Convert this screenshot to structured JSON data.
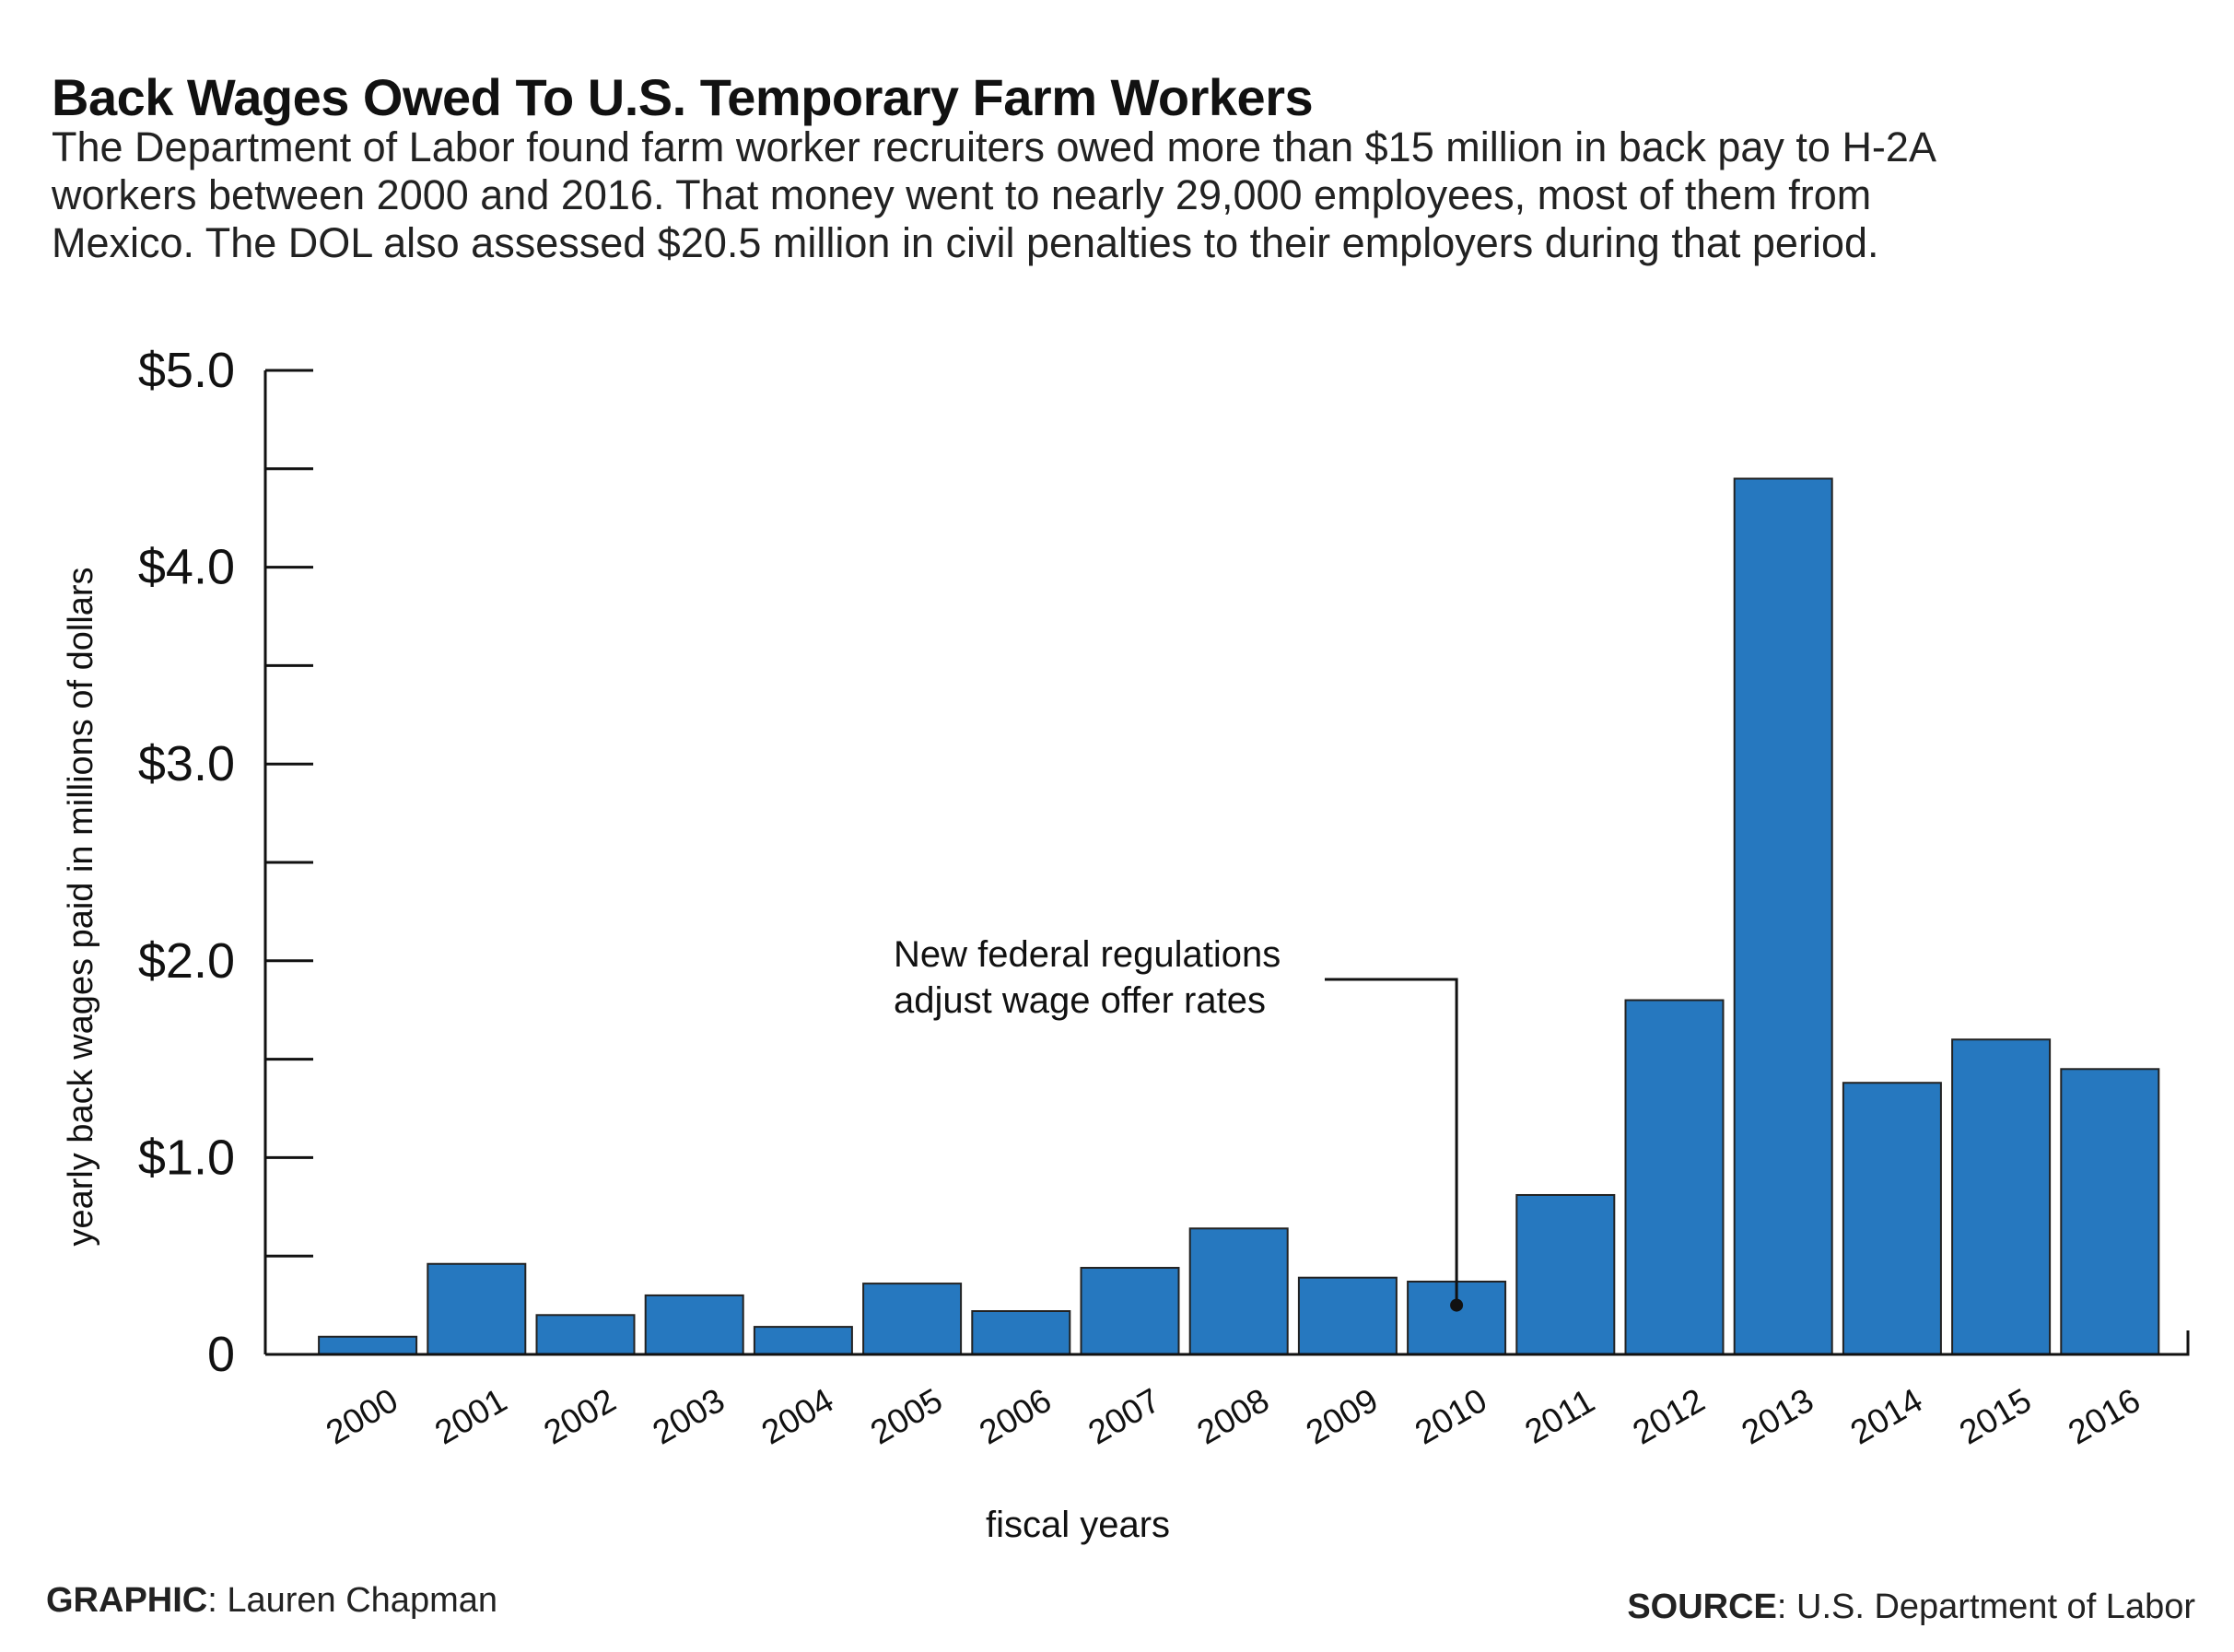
{
  "header": {
    "title": "Back Wages Owed To U.S. Temporary Farm Workers",
    "subtitle_lines": [
      "The Department of Labor found farm worker recruiters owed more than $15 million in back pay to H-2A",
      "workers between 2000 and 2016. That money went to nearly 29,000 employees, most of them from",
      "Mexico. The DOL also assessed $20.5 million in civil penalties to their employers during that period."
    ]
  },
  "footer": {
    "credit_label": "GRAPHIC",
    "credit_value": ": Lauren Chapman",
    "source_label": "SOURCE",
    "source_value": ": U.S. Department of Labor"
  },
  "chart_data": {
    "type": "bar",
    "title": "",
    "xlabel": "fiscal years",
    "ylabel": "yearly back wages paid in millions of dollars",
    "ylim": [
      0,
      5.0
    ],
    "y_ticks": [
      0,
      0.5,
      1.0,
      1.5,
      2.0,
      2.5,
      3.0,
      3.5,
      4.0,
      4.5,
      5.0
    ],
    "y_tick_labels": [
      {
        "value": 0,
        "label": "0"
      },
      {
        "value": 1.0,
        "label": "$1.0"
      },
      {
        "value": 2.0,
        "label": "$2.0"
      },
      {
        "value": 3.0,
        "label": "$3.0"
      },
      {
        "value": 4.0,
        "label": "$4.0"
      },
      {
        "value": 5.0,
        "label": "$5.0"
      }
    ],
    "categories": [
      "2000",
      "2001",
      "2002",
      "2003",
      "2004",
      "2005",
      "2006",
      "2007",
      "2008",
      "2009",
      "2010",
      "2011",
      "2012",
      "2013",
      "2014",
      "2015",
      "2016"
    ],
    "values": [
      0.09,
      0.46,
      0.2,
      0.3,
      0.14,
      0.36,
      0.22,
      0.44,
      0.64,
      0.39,
      0.37,
      0.81,
      1.8,
      4.45,
      1.38,
      1.6,
      1.45
    ],
    "bar_color": "#2678bf",
    "grid": false,
    "annotation": {
      "lines": [
        "New federal regulations",
        "adjust wage offer rates"
      ],
      "category": "2010",
      "value": 0.25
    }
  }
}
